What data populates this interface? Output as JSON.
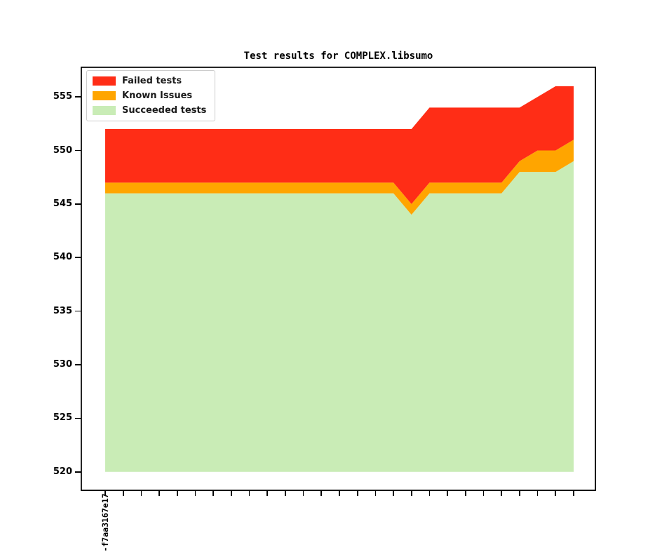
{
  "title": "Test results for COMPLEX.libsumo",
  "legend": [
    {
      "label": "Failed tests",
      "color": "#ff2d16"
    },
    {
      "label": "Known Issues",
      "color": "#ffa500"
    },
    {
      "label": "Succeeded tests",
      "color": "#c9ecb6"
    }
  ],
  "chart_data": {
    "type": "area",
    "stacked": true,
    "title": "Test results for COMPLEX.libsumo",
    "n_points": 27,
    "x_first_label": "-f7aa3167e17",
    "baseline": 520,
    "ylim": [
      518.2,
      557.8
    ],
    "yticks": [
      520,
      525,
      530,
      535,
      540,
      545,
      550,
      555
    ],
    "grid": false,
    "legend_position": "upper-left",
    "series": [
      {
        "name": "Succeeded tests",
        "color": "#c9ecb6",
        "values": [
          546,
          546,
          546,
          546,
          546,
          546,
          546,
          546,
          546,
          546,
          546,
          546,
          546,
          546,
          546,
          546,
          546,
          544,
          546,
          546,
          546,
          546,
          546,
          548,
          548,
          548,
          549
        ]
      },
      {
        "name": "Known Issues",
        "color": "#ffa500",
        "values": [
          1,
          1,
          1,
          1,
          1,
          1,
          1,
          1,
          1,
          1,
          1,
          1,
          1,
          1,
          1,
          1,
          1,
          1,
          1,
          1,
          1,
          1,
          1,
          1,
          2,
          2,
          2
        ]
      },
      {
        "name": "Failed tests",
        "color": "#ff2d16",
        "values": [
          5,
          5,
          5,
          5,
          5,
          5,
          5,
          5,
          5,
          5,
          5,
          5,
          5,
          5,
          5,
          5,
          5,
          7,
          7,
          7,
          7,
          7,
          7,
          5,
          5,
          6,
          5
        ]
      }
    ],
    "stack_totals": [
      552,
      552,
      552,
      552,
      552,
      552,
      552,
      552,
      552,
      552,
      552,
      552,
      552,
      552,
      552,
      552,
      552,
      552,
      554,
      554,
      554,
      554,
      554,
      554,
      555,
      556,
      556
    ]
  }
}
